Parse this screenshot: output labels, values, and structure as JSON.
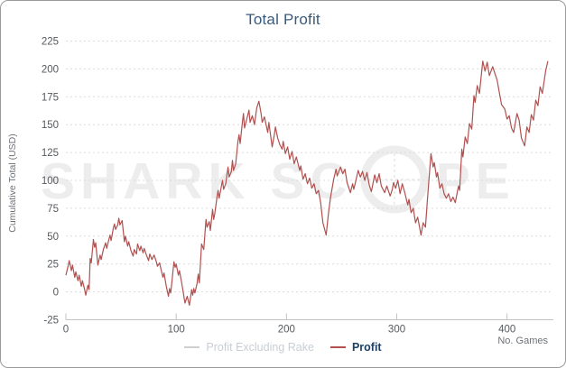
{
  "chart_data": {
    "type": "line",
    "title": "Total Profit",
    "xlabel": "No. Games",
    "ylabel": "Cumulative Total (USD)",
    "xlim": [
      0,
      442
    ],
    "ylim": [
      -25,
      225
    ],
    "x_ticks": [
      0,
      100,
      200,
      300,
      400
    ],
    "y_ticks": [
      225,
      200,
      175,
      150,
      125,
      100,
      75,
      50,
      25,
      0,
      -25
    ],
    "grid": "horizontal-dashed",
    "legend_position": "bottom-center",
    "series": [
      {
        "name": "Profit Excluding Rake",
        "color": "#cfcfcf",
        "visible": false,
        "points": []
      },
      {
        "name": "Profit",
        "color": "#b0504f",
        "visible": true,
        "points": [
          [
            0,
            15
          ],
          [
            2,
            23
          ],
          [
            3,
            28
          ],
          [
            5,
            19
          ],
          [
            6,
            24
          ],
          [
            8,
            13
          ],
          [
            9,
            18
          ],
          [
            11,
            10
          ],
          [
            12,
            15
          ],
          [
            14,
            5
          ],
          [
            15,
            10
          ],
          [
            17,
            2
          ],
          [
            18,
            -3
          ],
          [
            20,
            6
          ],
          [
            21,
            2
          ],
          [
            22,
            30
          ],
          [
            23,
            26
          ],
          [
            25,
            47
          ],
          [
            26,
            40
          ],
          [
            27,
            44
          ],
          [
            29,
            24
          ],
          [
            31,
            33
          ],
          [
            32,
            29
          ],
          [
            34,
            38
          ],
          [
            36,
            44
          ],
          [
            37,
            39
          ],
          [
            39,
            47
          ],
          [
            40,
            51
          ],
          [
            41,
            46
          ],
          [
            43,
            57
          ],
          [
            44,
            61
          ],
          [
            45,
            56
          ],
          [
            47,
            60
          ],
          [
            48,
            66
          ],
          [
            49,
            60
          ],
          [
            51,
            64
          ],
          [
            53,
            45
          ],
          [
            54,
            50
          ],
          [
            56,
            41
          ],
          [
            57,
            45
          ],
          [
            59,
            37
          ],
          [
            61,
            32
          ],
          [
            62,
            38
          ],
          [
            64,
            34
          ],
          [
            65,
            43
          ],
          [
            67,
            37
          ],
          [
            68,
            41
          ],
          [
            70,
            35
          ],
          [
            71,
            39
          ],
          [
            73,
            33
          ],
          [
            75,
            28
          ],
          [
            76,
            34
          ],
          [
            78,
            29
          ],
          [
            80,
            33
          ],
          [
            82,
            27
          ],
          [
            83,
            23
          ],
          [
            85,
            26
          ],
          [
            87,
            17
          ],
          [
            88,
            13
          ],
          [
            89,
            17
          ],
          [
            91,
            5
          ],
          [
            93,
            -4
          ],
          [
            94,
            3
          ],
          [
            95,
            -1
          ],
          [
            96,
            8
          ],
          [
            98,
            27
          ],
          [
            99,
            22
          ],
          [
            100,
            25
          ],
          [
            102,
            15
          ],
          [
            103,
            19
          ],
          [
            105,
            8
          ],
          [
            107,
            -4
          ],
          [
            108,
            -10
          ],
          [
            110,
            -4
          ],
          [
            111,
            -8
          ],
          [
            112,
            -12
          ],
          [
            114,
            2
          ],
          [
            115,
            -3
          ],
          [
            116,
            3
          ],
          [
            117,
            -1
          ],
          [
            119,
            8
          ],
          [
            120,
            16
          ],
          [
            121,
            8
          ],
          [
            123,
            43
          ],
          [
            125,
            38
          ],
          [
            127,
            65
          ],
          [
            128,
            58
          ],
          [
            130,
            63
          ],
          [
            131,
            55
          ],
          [
            133,
            74
          ],
          [
            134,
            65
          ],
          [
            135,
            70
          ],
          [
            137,
            85
          ],
          [
            138,
            91
          ],
          [
            139,
            84
          ],
          [
            141,
            95
          ],
          [
            142,
            100
          ],
          [
            143,
            92
          ],
          [
            145,
            97
          ],
          [
            147,
            112
          ],
          [
            148,
            103
          ],
          [
            150,
            108
          ],
          [
            151,
            118
          ],
          [
            152,
            109
          ],
          [
            154,
            115
          ],
          [
            156,
            135
          ],
          [
            157,
            141
          ],
          [
            158,
            133
          ],
          [
            160,
            152
          ],
          [
            161,
            160
          ],
          [
            162,
            147
          ],
          [
            164,
            155
          ],
          [
            166,
            163
          ],
          [
            167,
            152
          ],
          [
            169,
            158
          ],
          [
            171,
            150
          ],
          [
            173,
            165
          ],
          [
            175,
            171
          ],
          [
            177,
            160
          ],
          [
            178,
            152
          ],
          [
            180,
            157
          ],
          [
            183,
            143
          ],
          [
            184,
            152
          ],
          [
            187,
            130
          ],
          [
            189,
            141
          ],
          [
            190,
            148
          ],
          [
            192,
            138
          ],
          [
            194,
            132
          ],
          [
            196,
            128
          ],
          [
            197,
            135
          ],
          [
            199,
            124
          ],
          [
            201,
            130
          ],
          [
            203,
            119
          ],
          [
            205,
            126
          ],
          [
            207,
            115
          ],
          [
            209,
            121
          ],
          [
            212,
            109
          ],
          [
            213,
            113
          ],
          [
            215,
            101
          ],
          [
            217,
            106
          ],
          [
            219,
            97
          ],
          [
            221,
            102
          ],
          [
            223,
            93
          ],
          [
            225,
            97
          ],
          [
            227,
            88
          ],
          [
            229,
            91
          ],
          [
            231,
            80
          ],
          [
            233,
            62
          ],
          [
            236,
            51
          ],
          [
            238,
            70
          ],
          [
            240,
            85
          ],
          [
            243,
            102
          ],
          [
            245,
            110
          ],
          [
            246,
            104
          ],
          [
            249,
            112
          ],
          [
            251,
            106
          ],
          [
            253,
            110
          ],
          [
            255,
            98
          ],
          [
            258,
            89
          ],
          [
            260,
            97
          ],
          [
            261,
            92
          ],
          [
            263,
            100
          ],
          [
            265,
            109
          ],
          [
            267,
            103
          ],
          [
            269,
            108
          ],
          [
            271,
            100
          ],
          [
            273,
            107
          ],
          [
            275,
            96
          ],
          [
            277,
            90
          ],
          [
            280,
            105
          ],
          [
            282,
            98
          ],
          [
            284,
            106
          ],
          [
            286,
            95
          ],
          [
            289,
            89
          ],
          [
            291,
            95
          ],
          [
            294,
            86
          ],
          [
            296,
            92
          ],
          [
            297,
            98
          ],
          [
            299,
            93
          ],
          [
            301,
            100
          ],
          [
            303,
            88
          ],
          [
            305,
            97
          ],
          [
            307,
            90
          ],
          [
            310,
            78
          ],
          [
            311,
            83
          ],
          [
            313,
            71
          ],
          [
            315,
            75
          ],
          [
            317,
            62
          ],
          [
            319,
            67
          ],
          [
            322,
            51
          ],
          [
            324,
            62
          ],
          [
            326,
            58
          ],
          [
            328,
            85
          ],
          [
            331,
            124
          ],
          [
            333,
            112
          ],
          [
            334,
            116
          ],
          [
            336,
            103
          ],
          [
            337,
            107
          ],
          [
            339,
            93
          ],
          [
            341,
            97
          ],
          [
            343,
            88
          ],
          [
            345,
            84
          ],
          [
            347,
            88
          ],
          [
            349,
            81
          ],
          [
            351,
            85
          ],
          [
            353,
            80
          ],
          [
            356,
            95
          ],
          [
            357,
            91
          ],
          [
            359,
            128
          ],
          [
            360,
            121
          ],
          [
            362,
            139
          ],
          [
            364,
            133
          ],
          [
            366,
            151
          ],
          [
            368,
            146
          ],
          [
            370,
            176
          ],
          [
            371,
            170
          ],
          [
            373,
            185
          ],
          [
            375,
            178
          ],
          [
            378,
            207
          ],
          [
            380,
            198
          ],
          [
            382,
            206
          ],
          [
            384,
            194
          ],
          [
            387,
            202
          ],
          [
            389,
            196
          ],
          [
            391,
            190
          ],
          [
            393,
            179
          ],
          [
            395,
            168
          ],
          [
            398,
            164
          ],
          [
            400,
            155
          ],
          [
            402,
            158
          ],
          [
            404,
            147
          ],
          [
            406,
            143
          ],
          [
            409,
            160
          ],
          [
            411,
            154
          ],
          [
            413,
            138
          ],
          [
            416,
            131
          ],
          [
            418,
            148
          ],
          [
            420,
            143
          ],
          [
            422,
            159
          ],
          [
            424,
            154
          ],
          [
            426,
            172
          ],
          [
            428,
            167
          ],
          [
            430,
            184
          ],
          [
            432,
            178
          ],
          [
            435,
            198
          ],
          [
            437,
            207
          ]
        ]
      }
    ]
  },
  "watermark": {
    "text_left": "SHARK SC",
    "text_right": "PE",
    "icon": "scope-reticle-icon"
  },
  "colors": {
    "title": "#3a5a7c",
    "line": "#b0504f",
    "grid": "#dcdcdc",
    "axis": "#c3c3c3",
    "tick_text": "#55595e",
    "axis_title": "#6e7277",
    "watermark": "#ededed",
    "border": "#9b9b9b",
    "legend_disabled": "#c9ced4",
    "legend_active": "#1e4066"
  }
}
